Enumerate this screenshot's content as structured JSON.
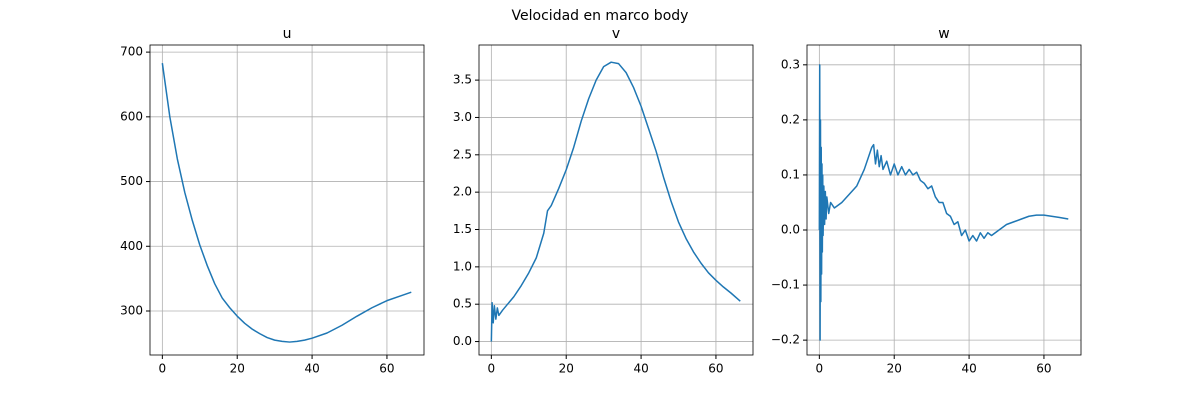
{
  "title": "Velocidad en marco body",
  "chart_data": [
    {
      "type": "line",
      "title": "u",
      "color": "#1f77b4",
      "grid": true,
      "xlim": [
        -3.3,
        69.9
      ],
      "xticks": [
        0,
        20,
        40,
        60
      ],
      "ylim": [
        232,
        711
      ],
      "yticks": [
        300,
        400,
        500,
        600,
        700
      ],
      "x": [
        0,
        2,
        4,
        6,
        8,
        10,
        12,
        14,
        16,
        18,
        20,
        22,
        24,
        26,
        28,
        30,
        32,
        34,
        36,
        38,
        40,
        44,
        48,
        52,
        56,
        60,
        64,
        66.5
      ],
      "values": [
        683,
        600,
        535,
        483,
        440,
        402,
        370,
        342,
        320,
        305,
        292,
        281,
        272,
        265,
        259,
        255,
        253,
        252,
        253,
        255,
        258,
        266,
        278,
        292,
        305,
        316,
        324,
        329
      ]
    },
    {
      "type": "line",
      "title": "v",
      "color": "#1f77b4",
      "grid": true,
      "xlim": [
        -3.3,
        69.9
      ],
      "xticks": [
        0,
        20,
        40,
        60
      ],
      "ylim": [
        -0.18,
        3.97
      ],
      "yticks": [
        {
          "value": 0,
          "label": "0.0"
        },
        0.5,
        {
          "value": 1,
          "label": "1.0"
        },
        1.5,
        {
          "value": 2,
          "label": "2.0"
        },
        2.5,
        {
          "value": 3,
          "label": "3.0"
        },
        3.5
      ],
      "x": [
        0,
        0.2,
        0.5,
        0.8,
        1.2,
        1.6,
        2,
        3,
        4,
        6,
        8,
        10,
        12,
        14,
        15,
        16,
        18,
        20,
        22,
        24,
        26,
        28,
        30,
        32,
        34,
        36,
        38,
        40,
        42,
        44,
        46,
        48,
        50,
        52,
        54,
        56,
        58,
        60,
        62,
        64,
        66.5
      ],
      "values": [
        0,
        0.52,
        0.25,
        0.48,
        0.3,
        0.45,
        0.35,
        0.42,
        0.48,
        0.6,
        0.75,
        0.92,
        1.12,
        1.45,
        1.75,
        1.82,
        2.05,
        2.3,
        2.6,
        2.95,
        3.25,
        3.5,
        3.68,
        3.74,
        3.72,
        3.6,
        3.4,
        3.15,
        2.85,
        2.55,
        2.2,
        1.88,
        1.6,
        1.38,
        1.2,
        1.05,
        0.92,
        0.82,
        0.73,
        0.65,
        0.54
      ]
    },
    {
      "type": "line",
      "title": "w",
      "color": "#1f77b4",
      "grid": true,
      "xlim": [
        -3.3,
        69.9
      ],
      "xticks": [
        0,
        20,
        40,
        60
      ],
      "ylim": [
        -0.227,
        0.336
      ],
      "yticks": [
        {
          "value": -0.2,
          "label": "−0.2"
        },
        {
          "value": -0.1,
          "label": "−0.1"
        },
        {
          "value": 0,
          "label": "0.0"
        },
        0.1,
        0.2,
        0.3
      ],
      "x": [
        0,
        0.1,
        0.2,
        0.3,
        0.4,
        0.5,
        0.6,
        0.7,
        0.8,
        0.9,
        1,
        1.2,
        1.4,
        1.6,
        1.8,
        2,
        2.5,
        3,
        4,
        6,
        8,
        10,
        12,
        14,
        14.5,
        15,
        15.5,
        16,
        16.5,
        17,
        18,
        19,
        20,
        21,
        22,
        23,
        24,
        25,
        26,
        27,
        28,
        29,
        30,
        31,
        32,
        33,
        34,
        35,
        36,
        37,
        38,
        39,
        40,
        41,
        42,
        43,
        44,
        45,
        46,
        48,
        50,
        52,
        54,
        56,
        58,
        60,
        62,
        64,
        66.5
      ],
      "values": [
        0,
        0.3,
        -0.2,
        0.2,
        -0.13,
        0.15,
        -0.08,
        0.12,
        -0.04,
        0.1,
        -0.01,
        0.08,
        0.01,
        0.07,
        0.02,
        0.06,
        0.03,
        0.05,
        0.04,
        0.05,
        0.065,
        0.08,
        0.11,
        0.15,
        0.155,
        0.12,
        0.145,
        0.115,
        0.135,
        0.11,
        0.125,
        0.1,
        0.12,
        0.1,
        0.115,
        0.1,
        0.11,
        0.1,
        0.105,
        0.09,
        0.085,
        0.075,
        0.08,
        0.06,
        0.05,
        0.05,
        0.03,
        0.025,
        0.01,
        0.015,
        -0.01,
        0,
        -0.02,
        -0.01,
        -0.02,
        -0.005,
        -0.015,
        -0.005,
        -0.01,
        0,
        0.01,
        0.015,
        0.02,
        0.025,
        0.027,
        0.027,
        0.025,
        0.023,
        0.02
      ]
    }
  ]
}
